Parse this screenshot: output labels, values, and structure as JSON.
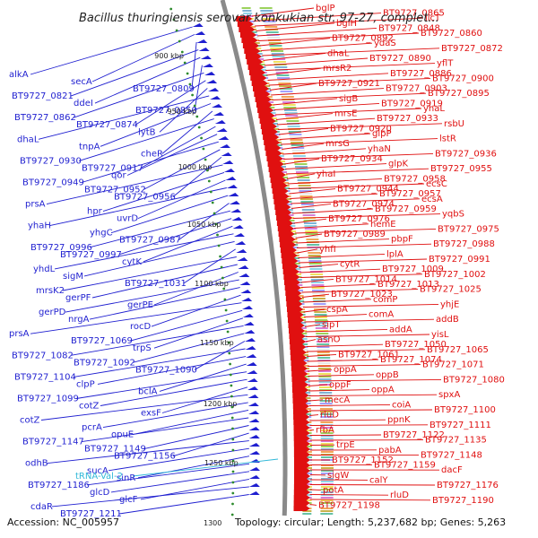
{
  "title": "Bacillus thuringiensis serovar konkukian str. 97-27, complet...",
  "footer": {
    "accession": "Accession: NC_005957",
    "topology": "Topology: circular; Length: 5,237,682 bp; Genes: 5,263"
  },
  "ruler_ticks": [
    "900 kbp",
    "950 kbp",
    "1000 kbp",
    "1050 kbp",
    "1100 kbp",
    "1150 kbp",
    "1200 kbp",
    "1250 kbp",
    "1300"
  ],
  "colors": {
    "reverse_strand": "#1f1fd0",
    "forward_strand": "#e01010",
    "rna": "#30b8d8",
    "backbone": "#8a8a8a",
    "ruler_dots": "#2e8b2e"
  },
  "left_labels": [
    "alkA",
    "secA",
    "BT9727_0809",
    "BT9727_0821",
    "ddeI",
    "BT9727_0850",
    "BT9727_0862",
    "BT9727_0874",
    "lytB",
    "dhaL",
    "tnpA",
    "cheR",
    "BT9727_0930",
    "BT9727_0917",
    "qor",
    "BT9727_0949",
    "BT9727_0952",
    "BT9727_0956",
    "prsA",
    "hpr",
    "uvrD",
    "yhaH",
    "yhgC",
    "BT9727_0987",
    "BT9727_0996",
    "BT9727_0997",
    "cytK",
    "yhdL",
    "sigM",
    "BT9727_1031",
    "mrsK2",
    "gerPF",
    "gerPE",
    "gerPD",
    "nrgA",
    "rocD",
    "prsA",
    "BT9727_1069",
    "trpS",
    "BT9727_1082",
    "BT9727_1092",
    "BT9727_1090",
    "BT9727_1104",
    "clpP",
    "bclA",
    "BT9727_1099",
    "cotZ",
    "exsF",
    "cotZ",
    "pcrA",
    "opuE",
    "BT9727_1147",
    "BT9727_1149",
    "BT9727_1156",
    "odhB",
    "sucA",
    "sinR",
    "BT9727_1186",
    "glcD",
    "glcF",
    "cdaR",
    "BT9727_1211"
  ],
  "rna_labels": [
    "tRNA-Val-2"
  ],
  "right_labels": [
    "bglP",
    "BT9727_0865",
    "licT",
    "bglH",
    "BT9727_0848",
    "BT9727_0860",
    "BT9727_0892",
    "ydaS",
    "BT9727_0872",
    "dhaL",
    "BT9727_0890",
    "yflT",
    "mrsR2",
    "BT9727_0886",
    "BT9727_0900",
    "BT9727_0921",
    "BT9727_0903",
    "BT9727_0895",
    "sigB",
    "BT9727_0919",
    "yhaL",
    "mrsE",
    "BT9727_0933",
    "rsbU",
    "BT9727_0920",
    "glpP",
    "lstR",
    "mrsG",
    "yhaN",
    "BT9727_0936",
    "BT9727_0934",
    "glpK",
    "BT9727_0955",
    "yhaI",
    "BT9727_0958",
    "ecsC",
    "BT9727_0944",
    "BT9727_0957",
    "ecsA",
    "BT9727_0974",
    "BT9727_0959",
    "yqbS",
    "BT9727_0976",
    "hemE",
    "BT9727_0975",
    "BT9727_0989",
    "pbpF",
    "BT9727_0988",
    "yhfI",
    "lplA",
    "BT9727_0991",
    "cytR",
    "BT9727_1009",
    "BT9727_1002",
    "BT9727_1014",
    "BT9727_1013",
    "BT9727_1025",
    "BT9727_1023",
    "comP",
    "yhjE",
    "cspA",
    "comA",
    "addB",
    "sipT",
    "addA",
    "yisL",
    "asnO",
    "BT9727_1050",
    "BT9727_1065",
    "BT9727_1061",
    "BT9727_1074",
    "BT9727_1071",
    "oppA",
    "oppB",
    "BT9727_1080",
    "oppF",
    "oppA",
    "spxA",
    "mecA",
    "coiA",
    "BT9727_1100",
    "rluD",
    "ppnK",
    "BT9727_1111",
    "rfbA",
    "BT9727_1122",
    "BT9727_1135",
    "trpE",
    "pabA",
    "BT9727_1148",
    "BT9727_1152",
    "BT9727_1159",
    "dacF",
    "sigW",
    "calY",
    "BT9727_1176",
    "potA",
    "rluD",
    "BT9727_1190",
    "BT9727_1198"
  ]
}
